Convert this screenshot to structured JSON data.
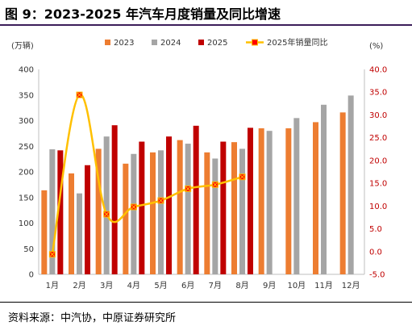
{
  "page": {
    "title": "图 9：2023-2025 年汽车月度销量及同比增速",
    "source": "资料来源：中汽协，中原证券研究所"
  },
  "chart_data": {
    "type": "bar",
    "categories": [
      "1月",
      "2月",
      "3月",
      "4月",
      "5月",
      "6月",
      "7月",
      "8月",
      "9月",
      "10月",
      "11月",
      "12月"
    ],
    "left_axis": {
      "unit": "(万辆)",
      "range": [
        0,
        400
      ],
      "ticks": [
        "0",
        "50",
        "100",
        "150",
        "200",
        "250",
        "300",
        "350",
        "400"
      ]
    },
    "right_axis": {
      "unit": "(%)",
      "range": [
        -5,
        40
      ],
      "ticks": [
        "-5.0",
        "0.0",
        "5.0",
        "10.0",
        "15.0",
        "20.0",
        "25.0",
        "30.0",
        "35.0",
        "40.0"
      ]
    },
    "series": [
      {
        "name": "2023",
        "type": "bar",
        "color": "#ed7d31",
        "values": [
          164,
          197,
          245,
          216,
          238,
          262,
          238,
          258,
          285,
          285,
          297,
          316
        ]
      },
      {
        "name": "2024",
        "type": "bar",
        "color": "#a5a5a5",
        "values": [
          244,
          158,
          269,
          235,
          242,
          255,
          226,
          245,
          280,
          305,
          331,
          349
        ]
      },
      {
        "name": "2025",
        "type": "bar",
        "color": "#c00000",
        "values": [
          242,
          213,
          291,
          259,
          269,
          290,
          259,
          286,
          null,
          null,
          null,
          null
        ]
      },
      {
        "name": "2025年销量同比",
        "type": "line",
        "axis": "right",
        "color": "#ffc000",
        "marker_color": "#ff0000",
        "values": [
          -0.6,
          34.4,
          8.2,
          9.8,
          11.2,
          13.8,
          14.7,
          16.4,
          null,
          null,
          null,
          null
        ]
      }
    ],
    "legend_position": "top",
    "grid": false
  }
}
